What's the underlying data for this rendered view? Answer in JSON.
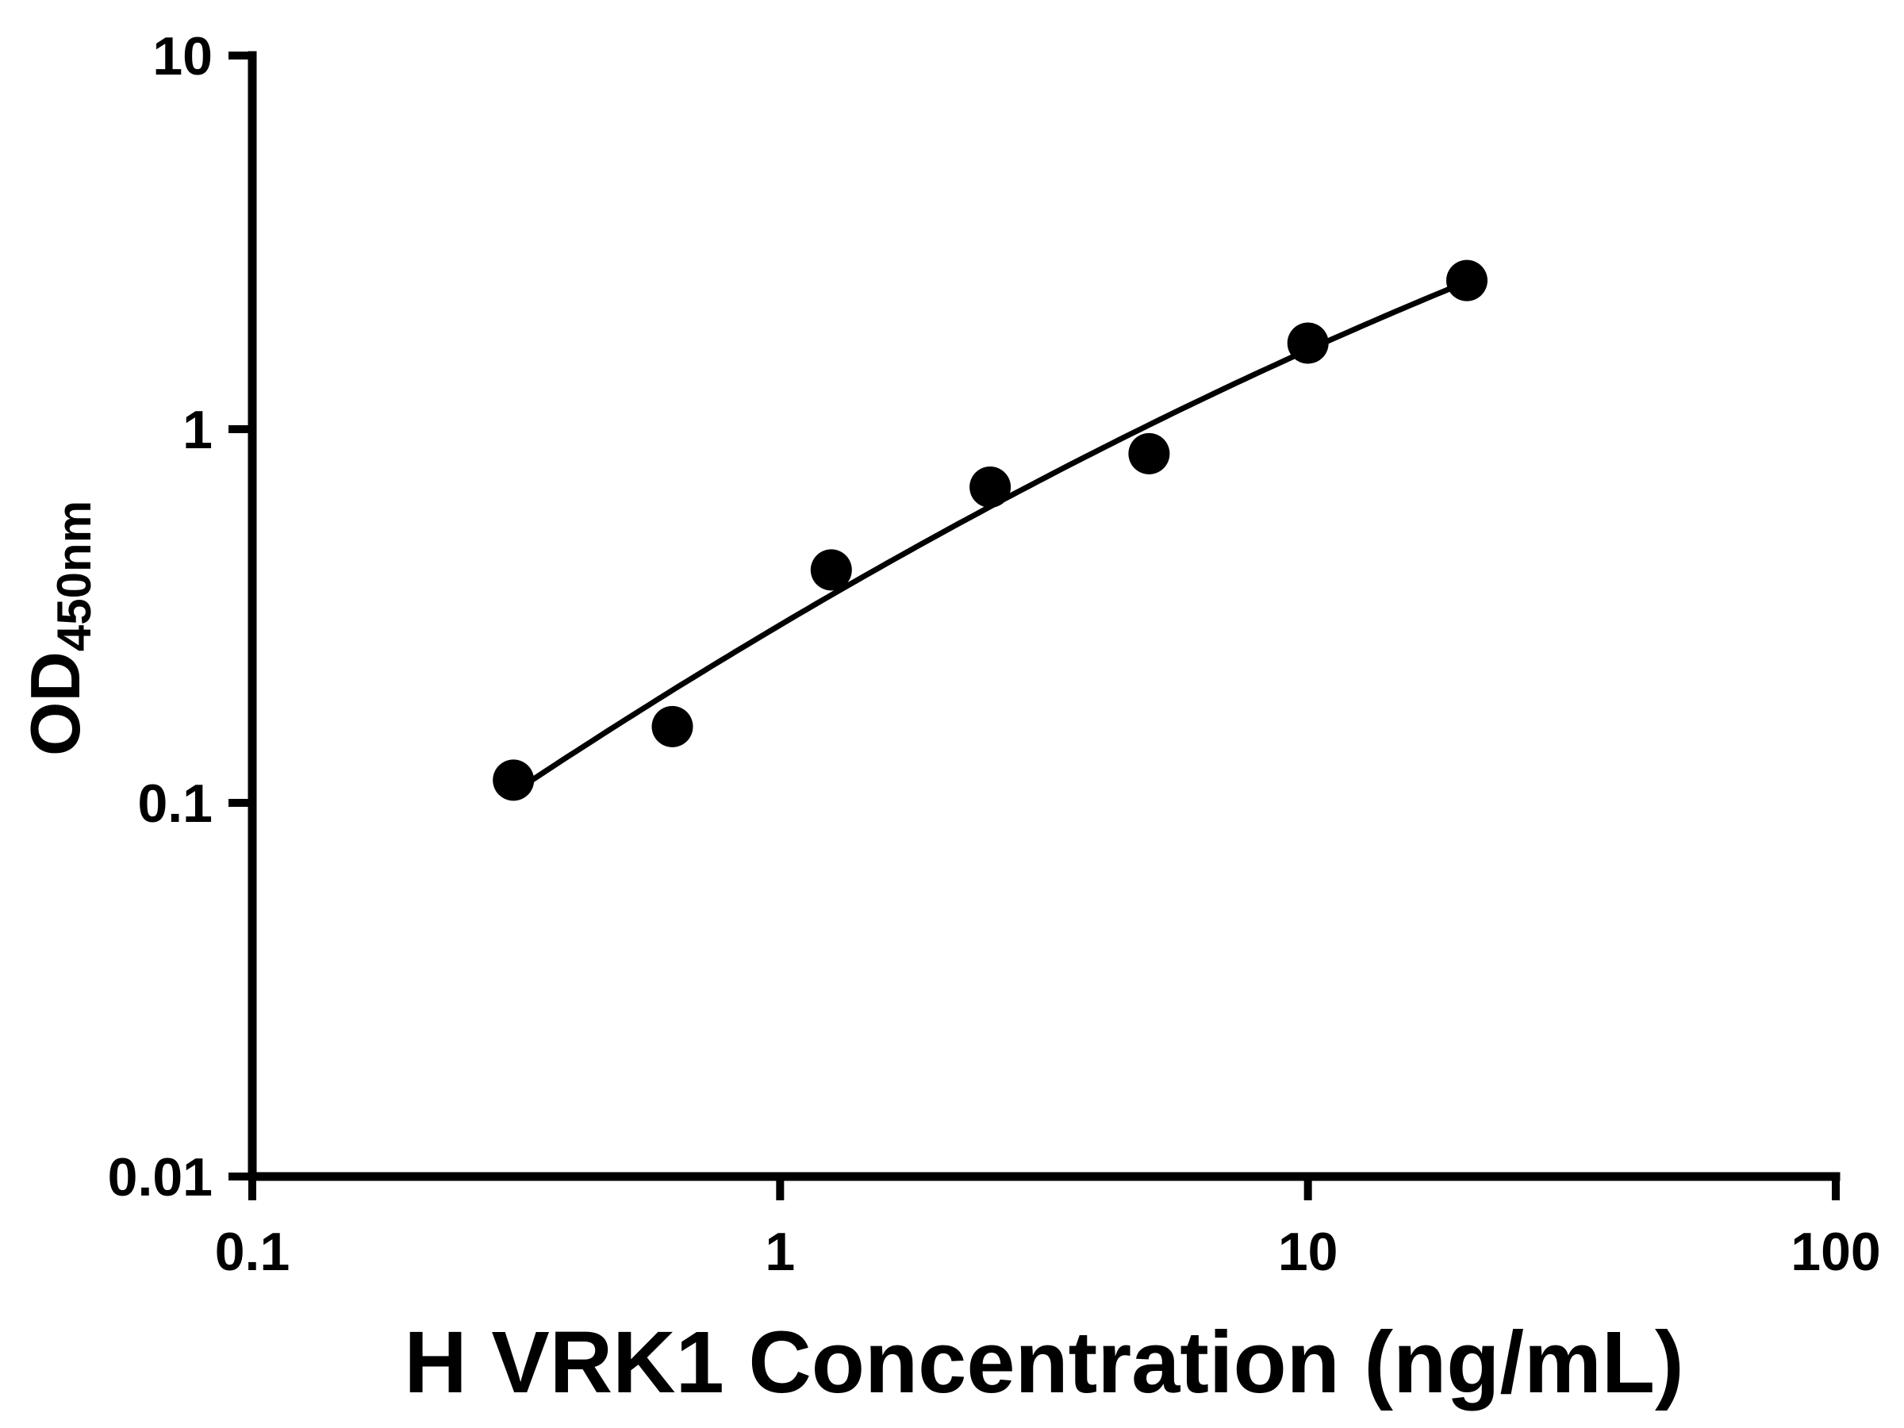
{
  "chart_data": {
    "type": "scatter",
    "title": "",
    "xlabel": "H VRK1 Concentration (ng/mL)",
    "ylabel": {
      "main": "OD",
      "sub": "450nm"
    },
    "x_scale": "log",
    "y_scale": "log",
    "xlim": [
      0.1,
      100
    ],
    "ylim": [
      0.01,
      10
    ],
    "grid": false,
    "legend": false,
    "x_ticks": [
      {
        "value": 0.1,
        "label": "0.1"
      },
      {
        "value": 1,
        "label": "1"
      },
      {
        "value": 10,
        "label": "10"
      },
      {
        "value": 100,
        "label": "100"
      }
    ],
    "y_ticks": [
      {
        "value": 0.01,
        "label": "0.01"
      },
      {
        "value": 0.1,
        "label": "0.1"
      },
      {
        "value": 1,
        "label": "1"
      },
      {
        "value": 10,
        "label": "10"
      }
    ],
    "series": [
      {
        "name": "standard-curve",
        "marker": "circle",
        "marker_color": "#000000",
        "line_color": "#000000",
        "fit": "quadratic-loglog",
        "points": [
          {
            "x": 0.3125,
            "y": 0.115
          },
          {
            "x": 0.625,
            "y": 0.16
          },
          {
            "x": 1.25,
            "y": 0.42
          },
          {
            "x": 2.5,
            "y": 0.7
          },
          {
            "x": 5,
            "y": 0.86
          },
          {
            "x": 10,
            "y": 1.7
          },
          {
            "x": 20,
            "y": 2.5
          }
        ]
      }
    ]
  },
  "colors": {
    "background": "#ffffff",
    "axis": "#000000",
    "text": "#000000",
    "marker": "#000000"
  }
}
